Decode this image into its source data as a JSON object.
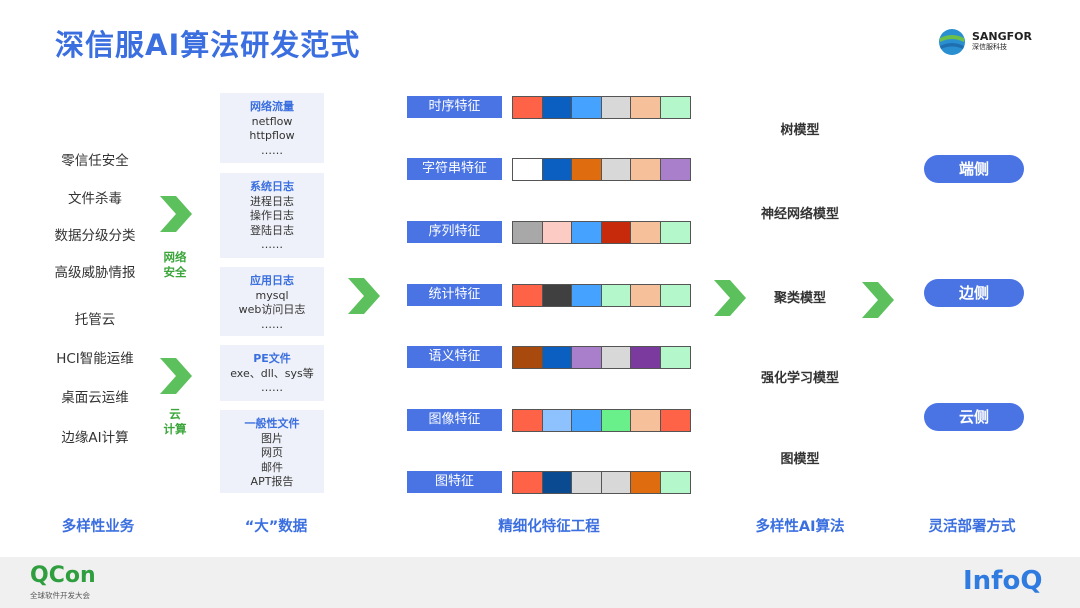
{
  "title": "深信服AI算法研发范式",
  "logo": {
    "brand": "SANGFOR",
    "sub": "深信服科技"
  },
  "business": {
    "items": [
      "零信任安全",
      "文件杀毒",
      "数据分级分类",
      "高级威胁情报",
      "托管云",
      "HCI智能运维",
      "桌面云运维",
      "边缘AI计算"
    ],
    "group1": "网络\n安全",
    "group2": "云\n计算"
  },
  "data_sources": [
    {
      "title": "网络流量",
      "lines": [
        "netflow",
        "httpflow",
        "……"
      ]
    },
    {
      "title": "系统日志",
      "lines": [
        "进程日志",
        "操作日志",
        "登陆日志",
        "……"
      ]
    },
    {
      "title": "应用日志",
      "lines": [
        "mysql",
        "web访问日志",
        "……"
      ]
    },
    {
      "title": "PE文件",
      "lines": [
        "exe、dll、sys等",
        "……"
      ]
    },
    {
      "title": "一般性文件",
      "lines": [
        "图片",
        "网页",
        "邮件",
        "APT报告"
      ]
    }
  ],
  "features": [
    {
      "label": "时序特征",
      "colors": [
        "#ff6347",
        "#0a5fc0",
        "#45a2ff",
        "#d8d8d8",
        "#f6c09a",
        "#b3f7cb"
      ]
    },
    {
      "label": "字符串特征",
      "colors": [
        "#ffffff",
        "#0a5fc0",
        "#e06c10",
        "#d8d8d8",
        "#f6c09a",
        "#a97fcc"
      ]
    },
    {
      "label": "序列特征",
      "colors": [
        "#a8a8a8",
        "#fccbc4",
        "#45a2ff",
        "#c62a0a",
        "#f6c09a",
        "#b3f7cb"
      ]
    },
    {
      "label": "统计特征",
      "colors": [
        "#ff6347",
        "#404040",
        "#45a2ff",
        "#b3f7cb",
        "#f6c09a",
        "#b3f7cb"
      ]
    },
    {
      "label": "语义特征",
      "colors": [
        "#a8490e",
        "#0a5fc0",
        "#a97fcc",
        "#d8d8d8",
        "#7a3a9e",
        "#b3f7cb"
      ]
    },
    {
      "label": "图像特征",
      "colors": [
        "#ff6347",
        "#8ec2ff",
        "#45a2ff",
        "#6af08a",
        "#f6c09a",
        "#ff6347"
      ]
    },
    {
      "label": "图特征",
      "colors": [
        "#ff6347",
        "#0a4a90",
        "#d8d8d8",
        "#d8d8d8",
        "#e06c10",
        "#b3f7cb"
      ]
    }
  ],
  "models": [
    "树模型",
    "神经网络模型",
    "聚类模型",
    "强化学习模型",
    "图模型"
  ],
  "deploy": [
    "端侧",
    "边侧",
    "云侧"
  ],
  "captions": [
    "多样性业务",
    "“大”数据",
    "精细化特征工程",
    "多样性AI算法",
    "灵活部署方式"
  ],
  "footer": {
    "left_logo": "QCon",
    "left_sub": "全球软件开发大会",
    "right_logo": "InfoQ"
  }
}
